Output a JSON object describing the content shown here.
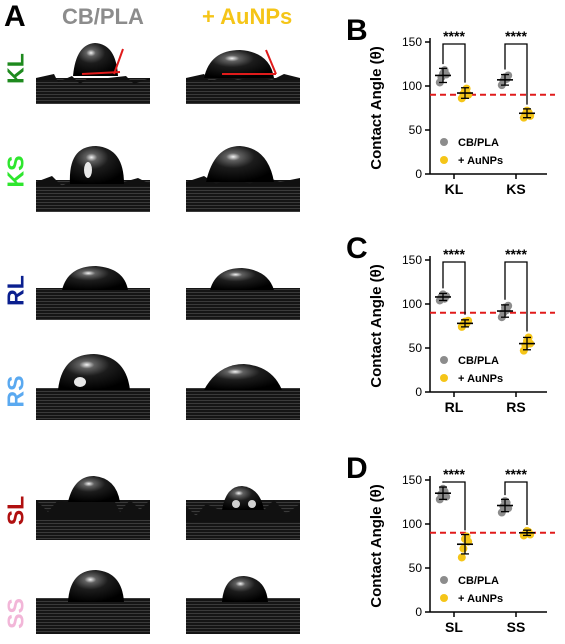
{
  "panel_a": {
    "letter": "A",
    "columns": [
      "CB/PLA",
      "+ AuNPs"
    ],
    "column_colors": [
      "#8c8c8c",
      "#f5c518"
    ],
    "rows": [
      {
        "label": "KL",
        "color": "#1e8a1e"
      },
      {
        "label": "KS",
        "color": "#2ee62e"
      },
      {
        "label": "RL",
        "color": "#0a1f8f"
      },
      {
        "label": "RS",
        "color": "#5aa9f0"
      },
      {
        "label": "SL",
        "color": "#b01010"
      },
      {
        "label": "SS",
        "color": "#f2b6d8"
      }
    ]
  },
  "chart_data": [
    {
      "type": "scatter",
      "panel": "B",
      "ylabel": "Contact Angle (θ)",
      "ylim": [
        0,
        150
      ],
      "yticks": [
        0,
        50,
        100,
        150
      ],
      "categories": [
        "KL",
        "KS"
      ],
      "reference_line": 90,
      "significance": [
        "****",
        "****"
      ],
      "legend": "bottom-left",
      "series": [
        {
          "name": "CB/PLA",
          "color": "#8c8c8c",
          "mean": [
            112,
            107
          ],
          "error": [
            8,
            6
          ],
          "points": [
            [
              104,
              110,
              114,
              118,
              113
            ],
            [
              101,
              106,
              110,
              108,
              112
            ]
          ]
        },
        {
          "name": "+ AuNPs",
          "color": "#f5c518",
          "mean": [
            92,
            69
          ],
          "error": [
            6,
            5
          ],
          "points": [
            [
              86,
              91,
              95,
              97,
              90
            ],
            [
              64,
              68,
              72,
              70,
              66
            ]
          ]
        }
      ]
    },
    {
      "type": "scatter",
      "panel": "C",
      "ylabel": "Contact Angle (θ)",
      "ylim": [
        0,
        150
      ],
      "yticks": [
        0,
        50,
        100,
        150
      ],
      "categories": [
        "RL",
        "RS"
      ],
      "reference_line": 90,
      "significance": [
        "****",
        "****"
      ],
      "legend": "bottom-left",
      "series": [
        {
          "name": "CB/PLA",
          "color": "#8c8c8c",
          "mean": [
            108,
            92
          ],
          "error": [
            4,
            7
          ],
          "points": [
            [
              104,
              108,
              111,
              106,
              109
            ],
            [
              85,
              90,
              96,
              93,
              98
            ]
          ]
        },
        {
          "name": "+ AuNPs",
          "color": "#f5c518",
          "mean": [
            78,
            55
          ],
          "error": [
            4,
            7
          ],
          "points": [
            [
              74,
              77,
              80,
              78,
              81
            ],
            [
              47,
              53,
              58,
              62,
              55
            ]
          ]
        }
      ]
    },
    {
      "type": "scatter",
      "panel": "D",
      "ylabel": "Contact Angle (θ)",
      "ylim": [
        0,
        150
      ],
      "yticks": [
        0,
        50,
        100,
        150
      ],
      "categories": [
        "SL",
        "SS"
      ],
      "reference_line": 90,
      "significance": [
        "****",
        "****"
      ],
      "legend": "bottom-left",
      "series": [
        {
          "name": "CB/PLA",
          "color": "#8c8c8c",
          "mean": [
            135,
            121
          ],
          "error": [
            7,
            7
          ],
          "points": [
            [
              128,
              134,
              140,
              137,
              131
            ],
            [
              113,
              120,
              126,
              124,
              118
            ]
          ]
        },
        {
          "name": "+ AuNPs",
          "color": "#f5c518",
          "mean": [
            77,
            90
          ],
          "error": [
            11,
            3
          ],
          "points": [
            [
              62,
              72,
              83,
              86,
              80
            ],
            [
              87,
              89,
              92,
              91,
              88
            ]
          ]
        }
      ]
    }
  ]
}
